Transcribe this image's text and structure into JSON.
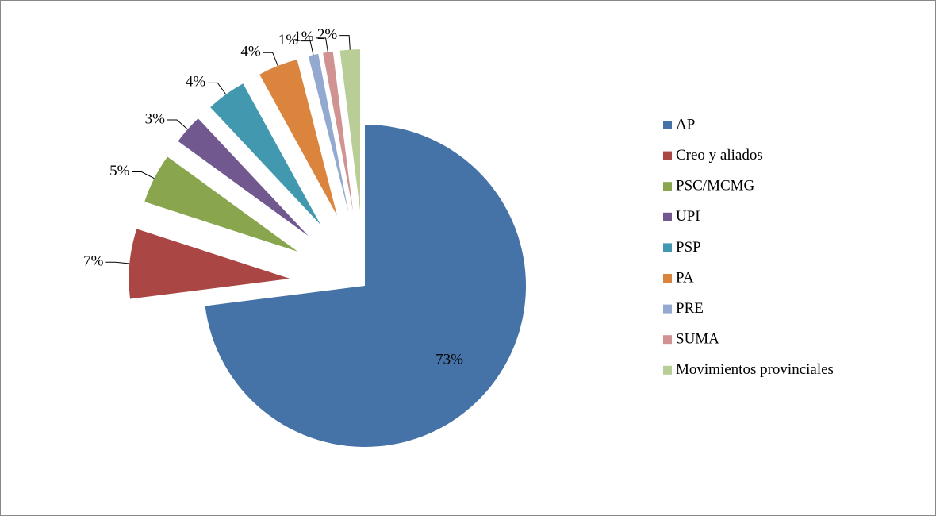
{
  "chart_data": {
    "type": "pie",
    "categories": [
      "AP",
      "Creo y aliados",
      "PSC/MCMG",
      "UPI",
      "PSP",
      "PA",
      "PRE",
      "SUMA",
      "Movimientos provinciales"
    ],
    "values": [
      73,
      7,
      5,
      3,
      4,
      4,
      1,
      1,
      2
    ],
    "value_labels": [
      "73%",
      "7%",
      "5%",
      "3%",
      "4%",
      "4%",
      "1%",
      "1%",
      "2%"
    ],
    "colors": [
      "#4572a7",
      "#aa4643",
      "#89a54e",
      "#71588f",
      "#4198af",
      "#db843d",
      "#93a9cf",
      "#d19392",
      "#b9cd96"
    ],
    "legend": "right"
  }
}
